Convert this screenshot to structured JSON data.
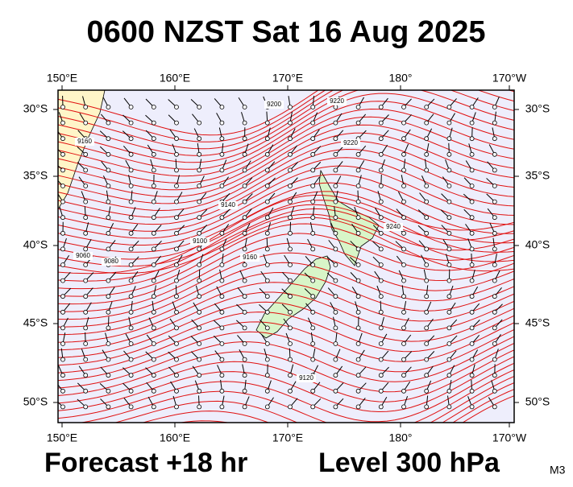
{
  "header": {
    "title": "0600 NZST Sat 16 Aug 2025"
  },
  "map": {
    "lon_labels": [
      "150°E",
      "160°E",
      "170°E",
      "180°",
      "170°W"
    ],
    "lat_labels": [
      "30°S",
      "35°S",
      "40°S",
      "45°S",
      "50°S"
    ],
    "contour_labels": [
      "9200",
      "9160",
      "9220",
      "9140",
      "9100",
      "9060",
      "9080",
      "9160",
      "9120",
      "9240",
      "9220"
    ]
  },
  "footer": {
    "forecast": "Forecast +18 hr",
    "level": "Level 300 hPa",
    "code": "M3"
  }
}
